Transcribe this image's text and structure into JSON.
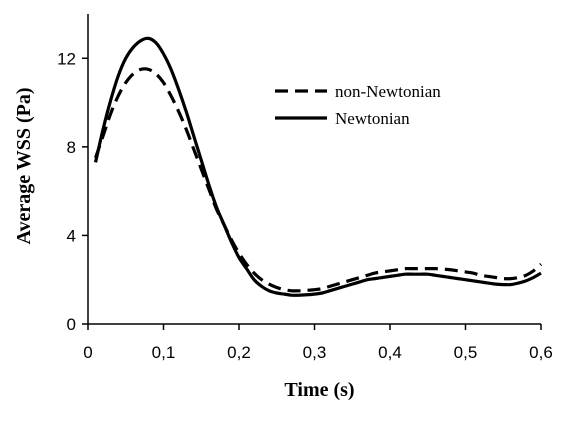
{
  "chart_data": {
    "type": "line",
    "title": "",
    "xlabel": "Time (s)",
    "ylabel": "Average WSS (Pa)",
    "xlim": [
      0,
      0.6
    ],
    "ylim": [
      0,
      14
    ],
    "xticks": [
      0,
      0.1,
      0.2,
      0.3,
      0.4,
      0.5,
      0.6
    ],
    "xtick_labels": [
      "0",
      "0,1",
      "0,2",
      "0,3",
      "0,4",
      "0,5",
      "0,6"
    ],
    "yticks": [
      0,
      4,
      8,
      12
    ],
    "ytick_labels": [
      "0",
      "4",
      "8",
      "12"
    ],
    "grid": false,
    "legend_position": "upper-right",
    "series": [
      {
        "name": "non-Newtonian",
        "style": "dashed",
        "color": "#000000",
        "x": [
          0.01,
          0.02,
          0.03,
          0.04,
          0.05,
          0.06,
          0.07,
          0.08,
          0.09,
          0.1,
          0.11,
          0.12,
          0.13,
          0.14,
          0.15,
          0.16,
          0.17,
          0.18,
          0.19,
          0.2,
          0.21,
          0.22,
          0.23,
          0.24,
          0.25,
          0.26,
          0.27,
          0.28,
          0.29,
          0.3,
          0.31,
          0.32,
          0.33,
          0.34,
          0.35,
          0.36,
          0.37,
          0.38,
          0.39,
          0.4,
          0.41,
          0.42,
          0.43,
          0.44,
          0.45,
          0.46,
          0.47,
          0.48,
          0.49,
          0.5,
          0.51,
          0.52,
          0.53,
          0.54,
          0.55,
          0.56,
          0.57,
          0.58,
          0.59,
          0.6
        ],
        "y": [
          7.5,
          8.5,
          9.5,
          10.3,
          10.9,
          11.3,
          11.5,
          11.5,
          11.3,
          10.9,
          10.3,
          9.6,
          8.8,
          7.9,
          7.0,
          6.1,
          5.2,
          4.5,
          3.8,
          3.2,
          2.7,
          2.3,
          2.0,
          1.8,
          1.65,
          1.55,
          1.5,
          1.5,
          1.52,
          1.55,
          1.6,
          1.7,
          1.8,
          1.9,
          2.0,
          2.1,
          2.2,
          2.3,
          2.35,
          2.4,
          2.45,
          2.5,
          2.5,
          2.5,
          2.5,
          2.5,
          2.48,
          2.45,
          2.4,
          2.35,
          2.3,
          2.2,
          2.15,
          2.1,
          2.05,
          2.05,
          2.1,
          2.2,
          2.4,
          2.7
        ]
      },
      {
        "name": "Newtonian",
        "style": "solid",
        "color": "#000000",
        "x": [
          0.01,
          0.02,
          0.03,
          0.04,
          0.05,
          0.06,
          0.07,
          0.08,
          0.09,
          0.1,
          0.11,
          0.12,
          0.13,
          0.14,
          0.15,
          0.16,
          0.17,
          0.18,
          0.19,
          0.2,
          0.21,
          0.22,
          0.23,
          0.24,
          0.25,
          0.26,
          0.27,
          0.28,
          0.29,
          0.3,
          0.31,
          0.32,
          0.33,
          0.34,
          0.35,
          0.36,
          0.37,
          0.38,
          0.39,
          0.4,
          0.41,
          0.42,
          0.43,
          0.44,
          0.45,
          0.46,
          0.47,
          0.48,
          0.49,
          0.5,
          0.51,
          0.52,
          0.53,
          0.54,
          0.55,
          0.56,
          0.57,
          0.58,
          0.59,
          0.6
        ],
        "y": [
          7.3,
          8.8,
          10.1,
          11.2,
          12.0,
          12.5,
          12.8,
          12.9,
          12.7,
          12.2,
          11.5,
          10.6,
          9.6,
          8.5,
          7.4,
          6.3,
          5.3,
          4.5,
          3.7,
          3.0,
          2.5,
          2.0,
          1.7,
          1.5,
          1.4,
          1.35,
          1.3,
          1.3,
          1.32,
          1.35,
          1.4,
          1.5,
          1.6,
          1.7,
          1.8,
          1.9,
          2.0,
          2.05,
          2.1,
          2.15,
          2.2,
          2.25,
          2.25,
          2.25,
          2.25,
          2.2,
          2.15,
          2.1,
          2.05,
          2.0,
          1.95,
          1.9,
          1.85,
          1.8,
          1.78,
          1.78,
          1.85,
          1.95,
          2.1,
          2.3
        ]
      }
    ]
  }
}
